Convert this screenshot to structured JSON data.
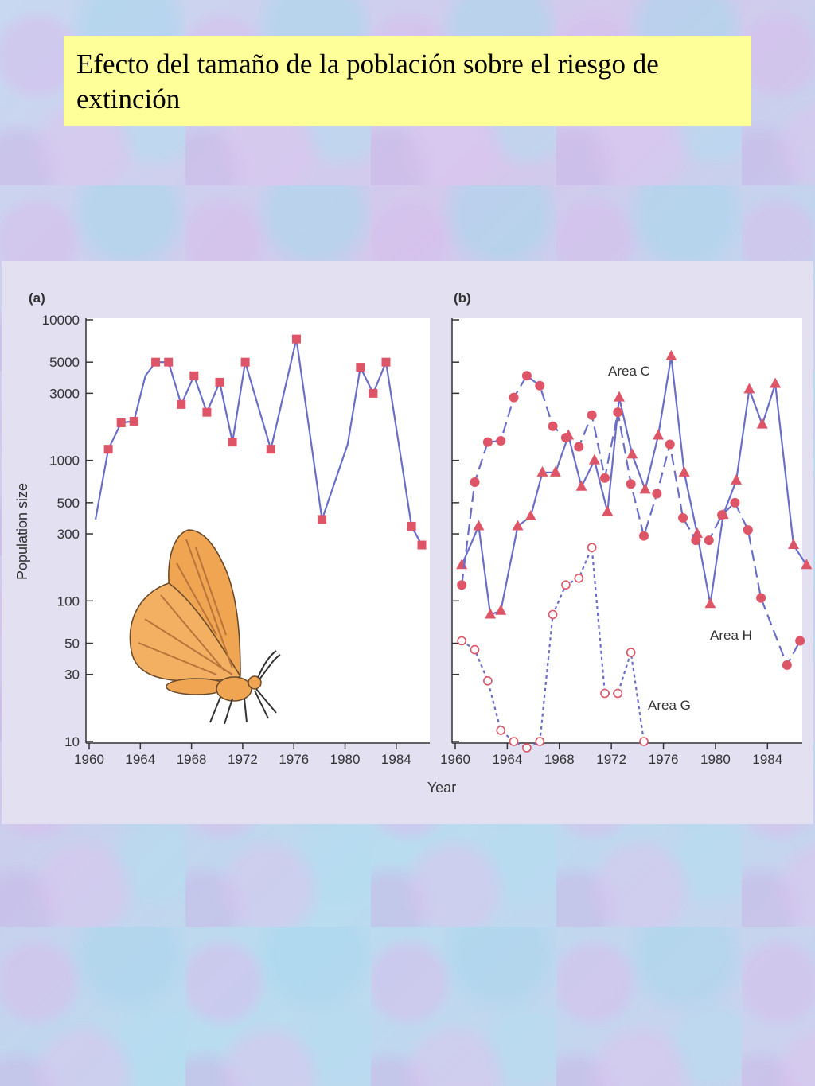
{
  "title": "Efecto del tamaño de la población sobre el riesgo de extinción",
  "colors": {
    "line": "#6b6ec6",
    "marker": "#dd5566",
    "title_background": "#ffff99",
    "panel_background": "#e2e0f1",
    "butterfly": "#f0a552"
  },
  "icons": {
    "illustration": "butterfly-illustration"
  },
  "chart_data": [
    {
      "panel_label": "(a)",
      "type": "line",
      "yscale": "log",
      "ylabel": "Population size",
      "xlabel": "",
      "xlim": [
        1960,
        1986
      ],
      "ylim": [
        10,
        10000
      ],
      "xticks": [
        "1960",
        "1964",
        "1968",
        "1972",
        "1976",
        "1980",
        "1984"
      ],
      "yticks": [
        "10",
        "30",
        "50",
        "100",
        "300",
        "500",
        "1000",
        "3000",
        "5000",
        "10000"
      ],
      "series": [
        {
          "marker": "square",
          "line": "solid",
          "points": [
            [
              1960.5,
              380,
              false
            ],
            [
              1961.5,
              1200,
              true
            ],
            [
              1962.5,
              1850,
              true
            ],
            [
              1963.5,
              1900,
              true
            ],
            [
              1964.4,
              4000,
              false
            ],
            [
              1965.2,
              5000,
              true
            ],
            [
              1966.2,
              5000,
              true
            ],
            [
              1967.2,
              2500,
              true
            ],
            [
              1968.2,
              4000,
              true
            ],
            [
              1969.2,
              2200,
              true
            ],
            [
              1970.2,
              3600,
              true
            ],
            [
              1971.2,
              1350,
              true
            ],
            [
              1972.2,
              5000,
              true
            ],
            [
              1974.2,
              1200,
              true
            ],
            [
              1976.2,
              7300,
              true
            ],
            [
              1978.2,
              380,
              true
            ],
            [
              1980.2,
              1300,
              false
            ],
            [
              1981.2,
              4600,
              true
            ],
            [
              1982.2,
              3000,
              true
            ],
            [
              1983.2,
              5000,
              true
            ],
            [
              1985.2,
              340,
              true
            ],
            [
              1986.0,
              250,
              true
            ]
          ]
        }
      ]
    },
    {
      "panel_label": "(b)",
      "type": "line",
      "yscale": "log",
      "xlabel": "Year",
      "xlim": [
        1960,
        1986
      ],
      "ylim": [
        10,
        10000
      ],
      "xticks": [
        "1960",
        "1964",
        "1968",
        "1972",
        "1976",
        "1980",
        "1984"
      ],
      "series": [
        {
          "name": "Area C",
          "marker": "triangle",
          "line": "solid",
          "points": [
            [
              1960.5,
              180
            ],
            [
              1961.8,
              340
            ],
            [
              1962.7,
              80
            ],
            [
              1963.5,
              85
            ],
            [
              1964.8,
              340
            ],
            [
              1965.8,
              400
            ],
            [
              1966.7,
              820
            ],
            [
              1967.7,
              820
            ],
            [
              1968.7,
              1500
            ],
            [
              1969.7,
              650
            ],
            [
              1970.7,
              1000
            ],
            [
              1971.7,
              430
            ],
            [
              1972.6,
              2800
            ],
            [
              1973.6,
              1100
            ],
            [
              1974.6,
              620
            ],
            [
              1975.6,
              1500
            ],
            [
              1976.6,
              5500
            ],
            [
              1977.6,
              820
            ],
            [
              1978.6,
              300
            ],
            [
              1979.6,
              95
            ],
            [
              1980.6,
              410
            ],
            [
              1981.6,
              720
            ],
            [
              1982.6,
              3200
            ],
            [
              1983.6,
              1800
            ],
            [
              1984.6,
              3500
            ],
            [
              1986.0,
              250
            ],
            [
              1987.0,
              180
            ]
          ]
        },
        {
          "name": "Area H",
          "marker": "circle",
          "line": "dashed",
          "points": [
            [
              1960.5,
              130
            ],
            [
              1961.5,
              700
            ],
            [
              1962.5,
              1350
            ],
            [
              1963.5,
              1380
            ],
            [
              1964.5,
              2800
            ],
            [
              1965.5,
              4000
            ],
            [
              1966.5,
              3400
            ],
            [
              1967.5,
              1750
            ],
            [
              1968.5,
              1450
            ],
            [
              1969.5,
              1250
            ],
            [
              1970.5,
              2100
            ],
            [
              1971.5,
              750
            ],
            [
              1972.5,
              2200
            ],
            [
              1973.5,
              680
            ],
            [
              1974.5,
              290
            ],
            [
              1975.5,
              580
            ],
            [
              1976.5,
              1300
            ],
            [
              1977.5,
              390
            ],
            [
              1978.5,
              270
            ],
            [
              1979.5,
              270
            ],
            [
              1980.5,
              410
            ],
            [
              1981.5,
              500
            ],
            [
              1982.5,
              320
            ],
            [
              1983.5,
              105
            ],
            [
              1985.5,
              35
            ],
            [
              1986.5,
              52
            ]
          ]
        },
        {
          "name": "Area G",
          "marker": "open-circle",
          "line": "dotted",
          "points": [
            [
              1960.5,
              52
            ],
            [
              1961.5,
              45
            ],
            [
              1962.5,
              27
            ],
            [
              1963.5,
              12
            ],
            [
              1964.5,
              10
            ],
            [
              1965.5,
              9
            ],
            [
              1966.5,
              10
            ],
            [
              1967.5,
              80
            ],
            [
              1968.5,
              130
            ],
            [
              1969.5,
              145
            ],
            [
              1970.5,
              240
            ],
            [
              1971.5,
              22
            ],
            [
              1972.5,
              22
            ],
            [
              1973.5,
              43
            ],
            [
              1974.5,
              10
            ]
          ]
        }
      ]
    }
  ]
}
